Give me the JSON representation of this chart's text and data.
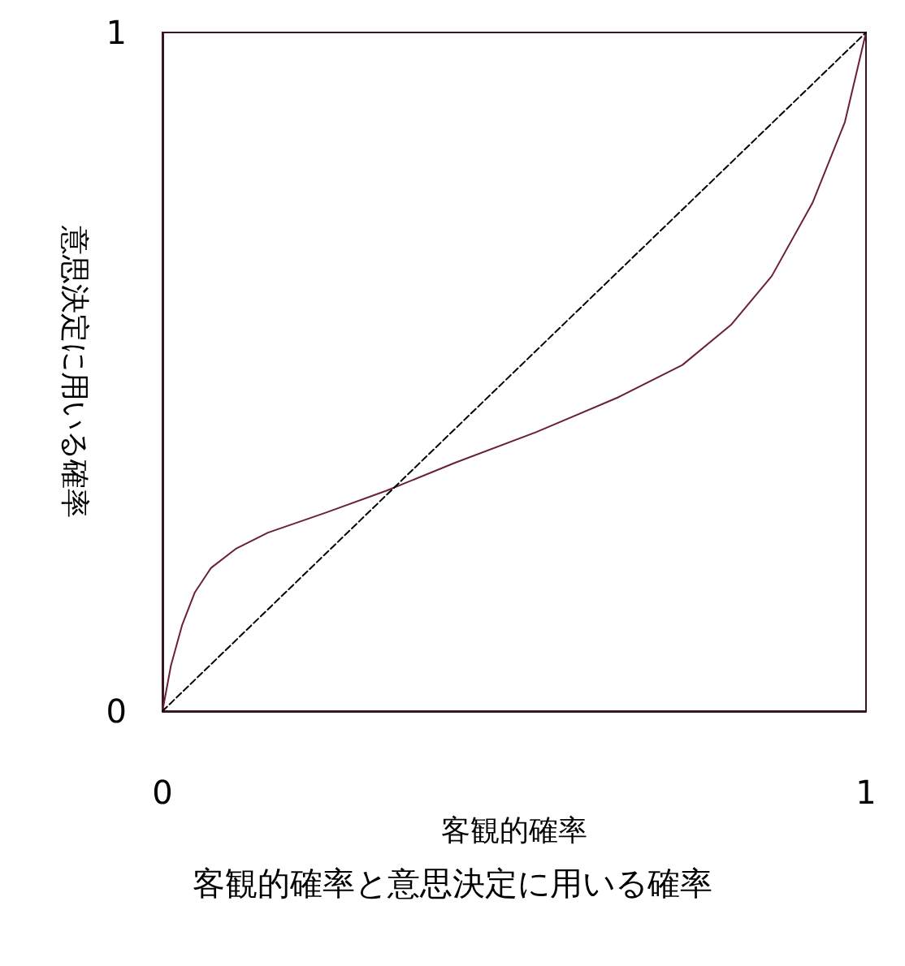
{
  "chart_data": {
    "type": "line",
    "title": "客観的確率と意思決定に用いる確率",
    "xlabel": "客観的確率",
    "ylabel": "意思決定に用いる確率",
    "xlim": [
      0,
      1
    ],
    "ylim": [
      0,
      1
    ],
    "xticks": [
      0,
      1
    ],
    "yticks": [
      0,
      1
    ],
    "grid": false,
    "marker": "none",
    "series": [
      {
        "color": "#6b1f3a",
        "line_style": "solid",
        "x": [
          0,
          0.012,
          0.028,
          0.046,
          0.069,
          0.104,
          0.15,
          0.231,
          0.319,
          0.416,
          0.531,
          0.647,
          0.739,
          0.808,
          0.866,
          0.924,
          0.97,
          1
        ],
        "values": [
          0,
          0.067,
          0.127,
          0.175,
          0.211,
          0.239,
          0.263,
          0.292,
          0.325,
          0.366,
          0.411,
          0.462,
          0.51,
          0.569,
          0.641,
          0.749,
          0.868,
          1
        ]
      },
      {
        "color": "#000000",
        "line_style": "dashed",
        "x": [
          0,
          1
        ],
        "values": [
          0,
          1
        ]
      }
    ]
  }
}
